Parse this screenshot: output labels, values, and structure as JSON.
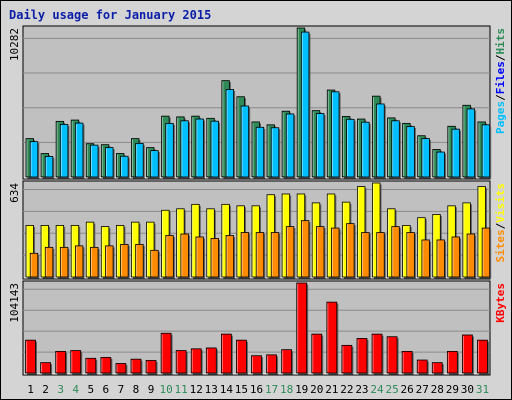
{
  "chart_data": {
    "type": "bar",
    "title": "Daily usage for January 2015",
    "categories": [
      "1",
      "2",
      "3",
      "4",
      "5",
      "6",
      "7",
      "8",
      "9",
      "10",
      "11",
      "12",
      "13",
      "14",
      "15",
      "16",
      "17",
      "18",
      "19",
      "20",
      "21",
      "22",
      "23",
      "24",
      "25",
      "26",
      "27",
      "28",
      "29",
      "30",
      "31"
    ],
    "weekend_days": [
      "3",
      "4",
      "10",
      "11",
      "17",
      "18",
      "24",
      "25",
      "31"
    ],
    "colors": {
      "hits": "#2e8b57",
      "files": "#00bfff",
      "sites": "#ff8c00",
      "visits": "#ffff00",
      "kbytes": "#ff0000",
      "pages_label": "#00bfff",
      "files_label": "#0000ff",
      "hits_label": "#2e8b57",
      "weekend_label": "#2e8b57",
      "weekday_label": "#000000",
      "title": "#0b1ea8",
      "plot_background": "#c0c0c0"
    },
    "panels": [
      {
        "id": "hits-files",
        "ymax_label": "10282",
        "ymax": 10282,
        "legend": [
          "Pages",
          "/",
          "Files",
          "/",
          "Hits"
        ],
        "series": [
          {
            "name": "Hits",
            "values": [
              2650,
              1620,
              3840,
              3930,
              2300,
              2230,
              1620,
              2650,
              2030,
              4200,
              4150,
              4200,
              4050,
              6650,
              5540,
              3800,
              3600,
              4540,
              10282,
              4580,
              6000,
              4180,
              4000,
              5580,
              4080,
              3700,
              2850,
              1900,
              3500,
              4950,
              3800
            ]
          },
          {
            "name": "Files",
            "values": [
              2440,
              1420,
              3630,
              3720,
              2200,
              2030,
              1430,
              2320,
              1820,
              3700,
              3880,
              4000,
              3850,
              6040,
              4900,
              3430,
              3400,
              4350,
              10000,
              4380,
              5880,
              3980,
              3780,
              5040,
              3880,
              3480,
              2650,
              1720,
              3300,
              4700,
              3600
            ]
          }
        ]
      },
      {
        "id": "visits-sites",
        "ymax_label": "634",
        "ymax": 634,
        "legend": [
          "Sites",
          "/",
          "Visits"
        ],
        "series": [
          {
            "name": "Visits",
            "values": [
              348,
              348,
              348,
              348,
              370,
              340,
              348,
              370,
              370,
              450,
              460,
              490,
              460,
              490,
              480,
              480,
              555,
              560,
              560,
              500,
              560,
              505,
              610,
              634,
              460,
              348,
              400,
              422,
              480,
              500,
              610
            ]
          },
          {
            "name": "Sites",
            "values": [
              160,
              200,
              200,
              210,
              200,
              210,
              220,
              220,
              180,
              280,
              290,
              270,
              260,
              280,
              300,
              300,
              300,
              340,
              380,
              340,
              330,
              360,
              300,
              300,
              340,
              300,
              250,
              250,
              270,
              290,
              330
            ]
          }
        ]
      },
      {
        "id": "kbytes",
        "ymax_label": "104143",
        "ymax": 104143,
        "legend": [
          "KBytes"
        ],
        "series": [
          {
            "name": "KBytes",
            "values": [
              38000,
              12000,
              25000,
              26000,
              17000,
              18000,
              11000,
              16000,
              14500,
              46000,
              26000,
              28000,
              29000,
              45000,
              38000,
              20000,
              21000,
              27000,
              104143,
              45000,
              82000,
              32000,
              40000,
              45000,
              42000,
              25000,
              15000,
              12000,
              25000,
              44000,
              38000
            ]
          }
        ]
      }
    ]
  }
}
